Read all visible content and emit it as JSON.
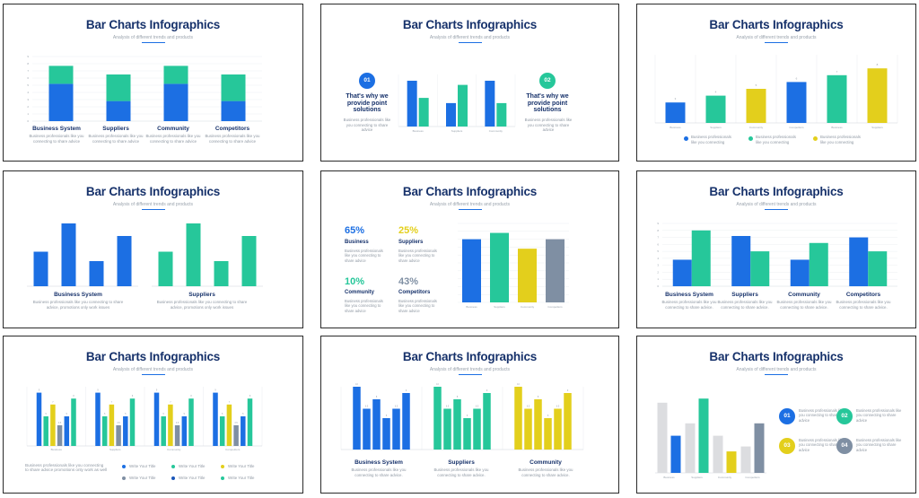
{
  "colors": {
    "blue": "#1c6fe3",
    "teal": "#26c79a",
    "yellow": "#e3cf1c",
    "slate": "#7f8fa3",
    "navy": "#17326b",
    "grey": "#dcdde0"
  },
  "common": {
    "title": "Bar Charts Infographics",
    "subtitle": "Analysis of different trends and products",
    "desc": "Business professionals like you connecting to share advice."
  },
  "s1": {
    "captions": [
      "Business System",
      "Suppliers",
      "Community",
      "Competitors"
    ],
    "desc": "Business professionals like you connecting to share advice"
  },
  "s2": {
    "badge1": "01",
    "badge2": "02",
    "headline": "That's why we provide point solutions",
    "desc": "Business professionals like you connecting to share advice"
  },
  "s3": {
    "legend": [
      "Business professionals like you connecting",
      "Business professionals like you connecting",
      "Business professionals like you connecting"
    ]
  },
  "s4": {
    "captions": [
      "Business System",
      "Suppliers"
    ],
    "desc": "Business professionals like you connecting to share advice, promotions only work issues"
  },
  "s5": {
    "stats": [
      {
        "value": "65%",
        "label": "Business",
        "desc": "Business professionals like you connecting to share advice"
      },
      {
        "value": "25%",
        "label": "Suppliers",
        "desc": "Business professionals like you connecting to share advice"
      },
      {
        "value": "10%",
        "label": "Community",
        "desc": "Business professionals like you connecting to share advice"
      },
      {
        "value": "43%",
        "label": "Competitors",
        "desc": "Business professionals like you connecting to share advice"
      }
    ]
  },
  "s6": {
    "captions": [
      "Business System",
      "Suppliers",
      "Community",
      "Competitors"
    ]
  },
  "s7": {
    "desc": "Business professionals like you connecting to share advice promotions only work as well",
    "legend": [
      "Write Your Title",
      "Write Your Title",
      "Write Your Title",
      "Write Your Title",
      "Write Your Title",
      "Write Your Title"
    ]
  },
  "s8": {
    "captions": [
      "Business System",
      "Suppliers",
      "Community"
    ]
  },
  "s9": {
    "badges": [
      "01",
      "02",
      "03",
      "04"
    ],
    "desc": "Business professionals like you connecting to share advice"
  },
  "chart_data": [
    {
      "id": "s1",
      "type": "bar",
      "stacked": true,
      "ylim": [
        0,
        9
      ],
      "yticks": [
        0,
        1,
        2,
        3,
        4,
        5,
        6,
        7,
        8,
        9
      ],
      "categories": [
        "Business System",
        "Suppliers",
        "Community",
        "Competitors"
      ],
      "series": [
        {
          "color": "blue",
          "values": [
            5.2,
            2.8,
            5.2,
            2.8
          ]
        },
        {
          "color": "teal",
          "values": [
            2.5,
            3.7,
            2.5,
            3.7
          ]
        }
      ]
    },
    {
      "id": "s2",
      "type": "bar",
      "ylim": [
        0,
        10
      ],
      "categories": [
        "Business",
        "Suppliers",
        "Community"
      ],
      "series": [
        {
          "color": "blue",
          "values": [
            8.8,
            4.5,
            8.8
          ]
        },
        {
          "color": "teal",
          "values": [
            5.5,
            8,
            4.5
          ]
        }
      ]
    },
    {
      "id": "s3",
      "type": "bar",
      "ylim": [
        0,
        10
      ],
      "categories": [
        "Business",
        "Suppliers",
        "Community",
        "Competitors",
        "Business",
        "Suppliers"
      ],
      "values": [
        3,
        4,
        5,
        6,
        7,
        8
      ],
      "bar_colors": [
        "blue",
        "teal",
        "yellow",
        "blue",
        "teal",
        "yellow"
      ],
      "labels": [
        "3",
        "4",
        "5",
        "6",
        "7",
        "8"
      ]
    },
    {
      "id": "s4a",
      "type": "bar",
      "ylim": [
        0,
        10
      ],
      "values": [
        5.5,
        10,
        4,
        8
      ],
      "color": "blue"
    },
    {
      "id": "s4b",
      "type": "bar",
      "ylim": [
        0,
        10
      ],
      "values": [
        5.5,
        10,
        4,
        8
      ],
      "color": "teal"
    },
    {
      "id": "s5",
      "type": "bar",
      "ylim": [
        0,
        100
      ],
      "categories": [
        "Business",
        "Suppliers",
        "Community",
        "Competitors"
      ],
      "values": [
        80,
        88,
        68,
        80
      ],
      "bar_colors": [
        "blue",
        "teal",
        "yellow",
        "slate"
      ]
    },
    {
      "id": "s6",
      "type": "bar",
      "ylim": [
        0,
        9
      ],
      "yticks": [
        0,
        1,
        2,
        3,
        4,
        5,
        6,
        7,
        8,
        9
      ],
      "categories": [
        "Business System",
        "Suppliers",
        "Community",
        "Competitors"
      ],
      "series": [
        {
          "color": "blue",
          "values": [
            3.8,
            7.2,
            3.8,
            7
          ]
        },
        {
          "color": "teal",
          "values": [
            8,
            5,
            6.2,
            5
          ]
        }
      ]
    },
    {
      "id": "s7",
      "type": "bar",
      "ylim": [
        0,
        10
      ],
      "groups": 4,
      "group_labels": [
        "Business",
        "Suppliers",
        "Community",
        "Competitors"
      ],
      "values": [
        9,
        5,
        7,
        3.5,
        5,
        8
      ],
      "bar_colors": [
        "blue",
        "teal",
        "yellow",
        "slate",
        "blue",
        "teal"
      ]
    },
    {
      "id": "s8",
      "type": "bar",
      "ylim": [
        0,
        10
      ],
      "groups": 3,
      "values": [
        10,
        6.5,
        8,
        5,
        6.5,
        9
      ],
      "group_colors": [
        "blue",
        "teal",
        "yellow"
      ]
    },
    {
      "id": "s9",
      "type": "bar",
      "ylim": [
        0,
        10
      ],
      "categories": [
        "Business",
        "Suppliers",
        "Community",
        "Competitors"
      ],
      "series": [
        {
          "color": "grey",
          "values": [
            8.5,
            6,
            4.5,
            3.2
          ]
        },
        {
          "color_each": [
            "blue",
            "teal",
            "yellow",
            "slate"
          ],
          "values": [
            4.5,
            9,
            2.6,
            6
          ]
        }
      ]
    }
  ]
}
